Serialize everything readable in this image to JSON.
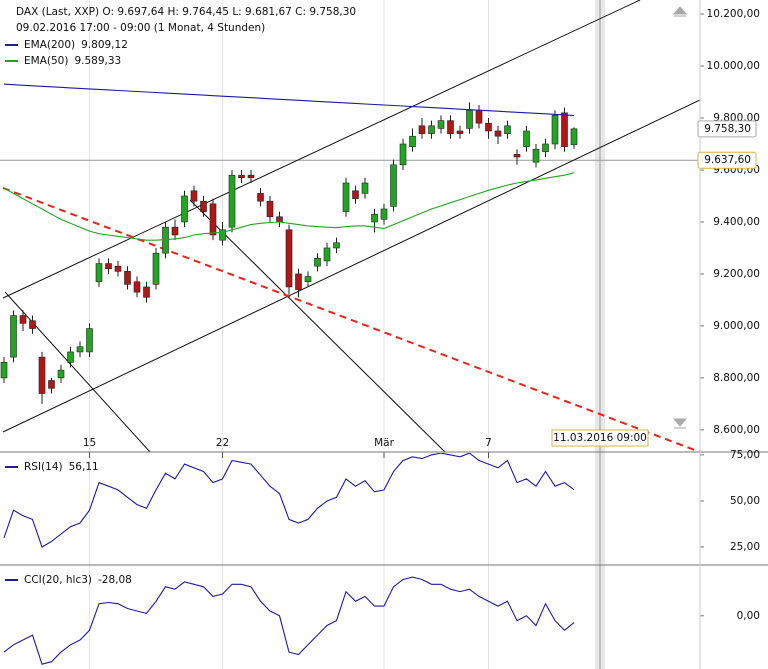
{
  "chart_data": [
    {
      "type": "candlestick",
      "title": "DAX (Last, XXP)  O: 9.697,64  H: 9.764,45  L: 9.681,67  C: 9.758,30",
      "subtitle": "09.02.2016 17:00 - 09:00 (1 Monat, 4 Stunden)",
      "categories": [
        null,
        null,
        null,
        null,
        null,
        null,
        null,
        null,
        null,
        "15",
        null,
        null,
        null,
        null,
        null,
        null,
        null,
        null,
        null,
        null,
        null,
        null,
        null,
        "22",
        null,
        null,
        null,
        null,
        null,
        null,
        null,
        null,
        null,
        null,
        null,
        null,
        null,
        null,
        null,
        null,
        "Mär",
        null,
        null,
        null,
        null,
        null,
        null,
        null,
        null,
        null,
        null,
        "7",
        null,
        null,
        null,
        null,
        null,
        null,
        null,
        null,
        null
      ],
      "open": [
        8800,
        8880,
        9040,
        9020,
        8880,
        8790,
        8800,
        8860,
        8900,
        8900,
        9170,
        9240,
        9230,
        9210,
        9170,
        9150,
        9160,
        9280,
        9380,
        9400,
        9520,
        9480,
        9470,
        9330,
        9380,
        9580,
        9580,
        9510,
        9480,
        9420,
        9370,
        9200,
        9170,
        9230,
        9250,
        9300,
        9440,
        9520,
        9510,
        9400,
        9410,
        9460,
        9620,
        9690,
        9770,
        9740,
        9760,
        9790,
        9750,
        9760,
        9830,
        9780,
        9750,
        9740,
        9660,
        9690,
        9630,
        9670,
        9700,
        9820,
        9697.64
      ],
      "high": [
        8880,
        9060,
        9060,
        9040,
        8900,
        8800,
        8850,
        8920,
        8940,
        9010,
        9260,
        9260,
        9250,
        9230,
        9190,
        9170,
        9300,
        9400,
        9410,
        9520,
        9540,
        9500,
        9490,
        9400,
        9600,
        9600,
        9600,
        9530,
        9500,
        9440,
        9390,
        9220,
        9210,
        9280,
        9320,
        9340,
        9570,
        9540,
        9570,
        9450,
        9470,
        9640,
        9720,
        9760,
        9800,
        9790,
        9810,
        9810,
        9770,
        9860,
        9850,
        9800,
        9770,
        9790,
        9680,
        9770,
        9700,
        9720,
        9830,
        9840,
        9764.45
      ],
      "low": [
        8780,
        8860,
        8980,
        8970,
        8700,
        8740,
        8780,
        8840,
        8880,
        8880,
        9150,
        9200,
        9190,
        9140,
        9110,
        9090,
        9140,
        9260,
        9330,
        9380,
        9460,
        9420,
        9330,
        9310,
        9360,
        9550,
        9550,
        9460,
        9400,
        9380,
        9120,
        9110,
        9150,
        9210,
        9230,
        9280,
        9420,
        9470,
        9490,
        9360,
        9390,
        9440,
        9600,
        9670,
        9720,
        9720,
        9740,
        9720,
        9720,
        9740,
        9760,
        9720,
        9700,
        9720,
        9620,
        9670,
        9610,
        9650,
        9680,
        9670,
        9681.67
      ],
      "close": [
        8860,
        9040,
        9010,
        8990,
        8740,
        8760,
        8830,
        8900,
        8920,
        8990,
        9240,
        9220,
        9210,
        9160,
        9130,
        9110,
        9280,
        9380,
        9350,
        9500,
        9480,
        9440,
        9350,
        9370,
        9580,
        9570,
        9570,
        9480,
        9420,
        9400,
        9150,
        9140,
        9190,
        9260,
        9300,
        9320,
        9550,
        9490,
        9550,
        9430,
        9450,
        9620,
        9700,
        9730,
        9740,
        9770,
        9790,
        9740,
        9740,
        9830,
        9780,
        9750,
        9730,
        9770,
        9650,
        9750,
        9680,
        9700,
        9810,
        9690,
        9758.3
      ],
      "up_color": "#22a622",
      "down_color": "#b01818",
      "series": [
        {
          "name": "EMA(200)",
          "color": "#1c1c9c",
          "last_value_label": "9.809,12",
          "values": [
            9930,
            9928,
            9926,
            9924,
            9922,
            9920,
            9918,
            9916,
            9914,
            9912,
            9910,
            9908,
            9906,
            9904,
            9902,
            9900,
            9898,
            9896,
            9894,
            9892,
            9890,
            9888,
            9886,
            9884,
            9882,
            9880,
            9878,
            9876,
            9874,
            9872,
            9870,
            9868,
            9866,
            9864,
            9862,
            9860,
            9858,
            9856,
            9854,
            9852,
            9850,
            9848,
            9846,
            9844,
            9842,
            9840,
            9838,
            9836,
            9834,
            9832,
            9830,
            9828,
            9826,
            9824,
            9822,
            9820,
            9818,
            9816,
            9814,
            9812,
            9809.12
          ]
        },
        {
          "name": "EMA(50)",
          "color": "#22a622",
          "last_value_label": "9.589,33",
          "values": [
            9530,
            9510,
            9490,
            9470,
            9450,
            9430,
            9410,
            9395,
            9380,
            9365,
            9355,
            9350,
            9345,
            9340,
            9335,
            9330,
            9330,
            9332,
            9335,
            9340,
            9350,
            9355,
            9358,
            9360,
            9370,
            9380,
            9390,
            9395,
            9398,
            9400,
            9395,
            9390,
            9385,
            9382,
            9380,
            9378,
            9382,
            9385,
            9385,
            9380,
            9375,
            9390,
            9405,
            9420,
            9435,
            9450,
            9462,
            9474,
            9486,
            9498,
            9510,
            9522,
            9532,
            9542,
            9550,
            9556,
            9562,
            9568,
            9574,
            9580,
            9589.33
          ]
        }
      ],
      "price_labels": [
        {
          "value": 9758.3,
          "label": "9.758,30"
        },
        {
          "value": 9637.6,
          "label": "9.637,60"
        }
      ],
      "crosshair_label": "11.03.2016 09:00",
      "ylim": [
        8515,
        10254
      ],
      "yticks": [
        {
          "value": 8600,
          "label": "8.600,00"
        },
        {
          "value": 8800,
          "label": "8.800,00"
        },
        {
          "value": 9000,
          "label": "9.000,00"
        },
        {
          "value": 9200,
          "label": "9.200,00"
        },
        {
          "value": 9400,
          "label": "9.400,00"
        },
        {
          "value": 9600,
          "label": "9.600,00"
        },
        {
          "value": 9800,
          "label": "9.800,00"
        },
        {
          "value": 10000,
          "label": "10.000,00"
        },
        {
          "value": 10200,
          "label": "10.200,00"
        }
      ]
    },
    {
      "type": "line",
      "series": [
        {
          "name": "RSI(14)",
          "color": "#1c1c9c",
          "last_value_label": "56,11",
          "values": [
            30,
            45,
            42,
            40,
            25,
            28,
            32,
            36,
            38,
            45,
            60,
            58,
            56,
            52,
            48,
            46,
            56,
            65,
            62,
            70,
            68,
            66,
            60,
            62,
            72,
            71,
            70,
            64,
            58,
            54,
            40,
            38,
            40,
            46,
            50,
            52,
            62,
            58,
            61,
            55,
            56,
            66,
            72,
            74,
            73,
            75,
            76,
            75,
            74,
            76,
            72,
            70,
            68,
            72,
            60,
            62,
            58,
            66,
            58,
            60,
            56.11
          ]
        }
      ],
      "ylim": [
        15.2,
        76.6
      ],
      "yticks": [
        {
          "value": 25,
          "label": "25,00"
        },
        {
          "value": 50,
          "label": "50,00"
        },
        {
          "value": 75,
          "label": "75,00"
        }
      ]
    },
    {
      "type": "line",
      "series": [
        {
          "name": "CCI(20, hlc3)",
          "color": "#1c1c9c",
          "last_value_label": "-28,08",
          "values": [
            -150,
            -120,
            -100,
            -80,
            -200,
            -190,
            -150,
            -120,
            -100,
            -60,
            50,
            55,
            50,
            30,
            20,
            10,
            60,
            120,
            110,
            140,
            130,
            120,
            80,
            90,
            130,
            130,
            120,
            60,
            20,
            0,
            -150,
            -160,
            -120,
            -80,
            -40,
            -20,
            100,
            60,
            80,
            40,
            40,
            120,
            150,
            160,
            150,
            130,
            130,
            110,
            100,
            110,
            80,
            60,
            40,
            60,
            -20,
            0,
            -40,
            50,
            -20,
            -60,
            -28.08
          ]
        }
      ],
      "ylim": [
        -220,
        210
      ],
      "yticks": [
        {
          "value": 0,
          "label": "0,00"
        }
      ]
    }
  ]
}
